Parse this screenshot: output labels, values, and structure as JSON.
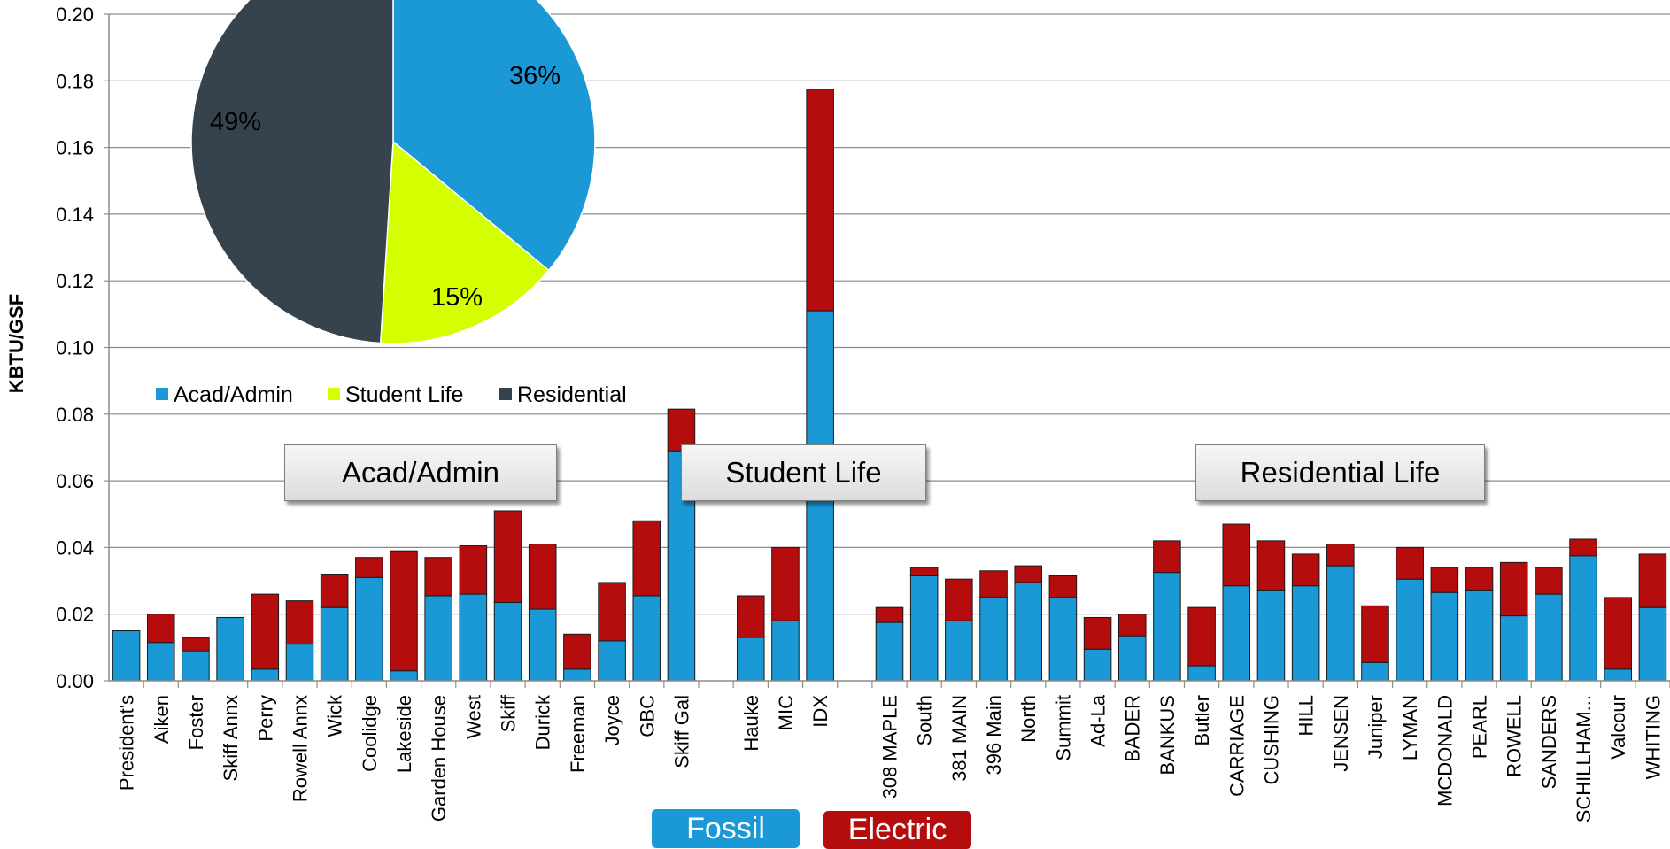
{
  "chart_data": {
    "type": "bar",
    "stacked": true,
    "ylabel": "KBTU/GSF",
    "ylim": [
      0,
      0.2
    ],
    "yticks": [
      "0.00",
      "0.02",
      "0.04",
      "0.06",
      "0.08",
      "0.10",
      "0.12",
      "0.14",
      "0.16",
      "0.18",
      "0.20"
    ],
    "grid": true,
    "groups": [
      {
        "name": "Acad/Admin",
        "categories": [
          "President's",
          "Aiken",
          "Foster",
          "Skiff Annx",
          "Perry",
          "Rowell Annx",
          "Wick",
          "Coolidge",
          "Lakeside",
          "Garden House",
          "West",
          "Skiff",
          "Durick",
          "Freeman",
          "Joyce",
          "GBC",
          "Skiff Gal"
        ]
      },
      {
        "name": "Student Life",
        "categories": [
          "Hauke",
          "MIC",
          "IDX"
        ]
      },
      {
        "name": "Residential Life",
        "categories": [
          "308 MAPLE",
          "South",
          "381 MAIN",
          "396 Main",
          "North",
          "Summit",
          "Ad-La",
          "BADER",
          "BANKUS",
          "Butler",
          "CARRIAGE",
          "CUSHING",
          "HILL",
          "JENSEN",
          "Juniper",
          "LYMAN",
          "MCDONALD",
          "PEARL",
          "ROWELL",
          "SANDERS",
          "SCHILLHAM...",
          "Valcour",
          "WHITING"
        ]
      }
    ],
    "series": [
      {
        "name": "Fossil",
        "color": "#1b98d6",
        "values": [
          0.015,
          0.0115,
          0.009,
          0.019,
          0.0035,
          0.011,
          0.022,
          0.031,
          0.003,
          0.0255,
          0.026,
          0.0235,
          0.0215,
          0.0035,
          0.012,
          0.0255,
          0.069,
          0.013,
          0.018,
          0.111,
          0.0175,
          0.0315,
          0.018,
          0.025,
          0.0295,
          0.025,
          0.0095,
          0.0135,
          0.0325,
          0.0045,
          0.0285,
          0.027,
          0.0285,
          0.0345,
          0.0055,
          0.0305,
          0.0265,
          0.027,
          0.0195,
          0.026,
          0.0375,
          0.0035,
          0.022
        ]
      },
      {
        "name": "Electric",
        "color": "#b50d0d",
        "values": [
          0.0,
          0.0085,
          0.004,
          0.0,
          0.0225,
          0.013,
          0.01,
          0.006,
          0.036,
          0.0115,
          0.0145,
          0.0275,
          0.0195,
          0.0105,
          0.0175,
          0.0225,
          0.0125,
          0.0125,
          0.022,
          0.0665,
          0.0045,
          0.0025,
          0.0125,
          0.008,
          0.005,
          0.0065,
          0.0095,
          0.0065,
          0.0095,
          0.0175,
          0.0185,
          0.015,
          0.0095,
          0.0065,
          0.017,
          0.0095,
          0.0075,
          0.007,
          0.016,
          0.008,
          0.005,
          0.0215,
          0.016
        ]
      }
    ],
    "group_labels": [
      "Acad/Admin",
      "Student Life",
      "Residential Life"
    ],
    "key_labels": [
      "Fossil",
      "Electric"
    ],
    "pie": {
      "type": "pie",
      "slices": [
        {
          "label": "Acad/Admin",
          "value": 36,
          "text": "36%",
          "color": "#1b98d6"
        },
        {
          "label": "Student Life",
          "value": 15,
          "text": "15%",
          "color": "#d4ff00"
        },
        {
          "label": "Residential",
          "value": 49,
          "text": "49%",
          "color": "#36434d"
        }
      ],
      "legend": "bottom"
    }
  }
}
